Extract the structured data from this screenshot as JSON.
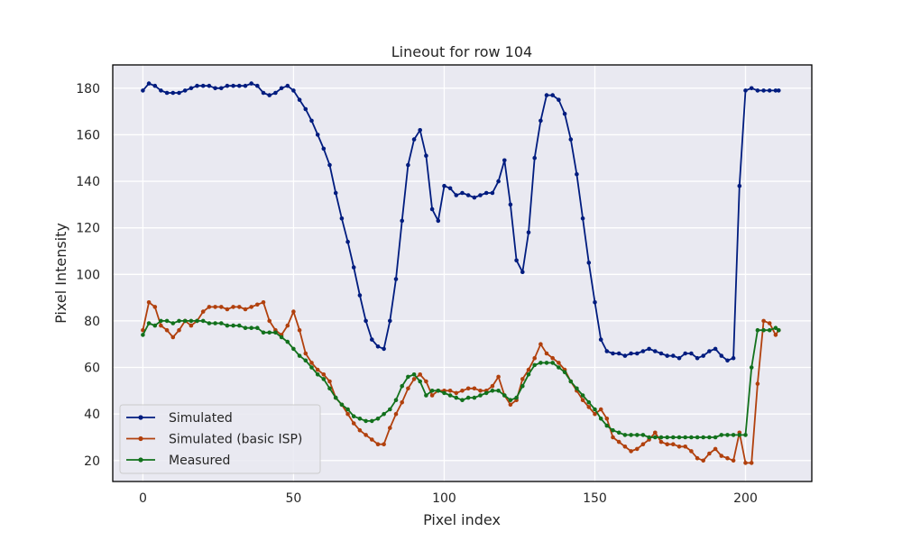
{
  "chart_data": {
    "type": "line",
    "title": "Lineout for row 104",
    "xlabel": "Pixel index",
    "ylabel": "Pixel Intensity",
    "xlim": [
      -10,
      222
    ],
    "ylim": [
      11,
      190
    ],
    "xticks": [
      0,
      50,
      100,
      150,
      200
    ],
    "yticks": [
      20,
      40,
      60,
      80,
      100,
      120,
      140,
      160,
      180
    ],
    "grid": true,
    "legend_position": "lower-left",
    "colors": {
      "background": "#e9e9f1",
      "grid": "#ffffff",
      "frame": "#000000"
    },
    "series": [
      {
        "name": "Simulated",
        "color": "#001c7f",
        "x": [
          0,
          2,
          4,
          6,
          8,
          10,
          12,
          14,
          16,
          18,
          20,
          22,
          24,
          26,
          28,
          30,
          32,
          34,
          36,
          38,
          40,
          42,
          44,
          46,
          48,
          50,
          52,
          54,
          56,
          58,
          60,
          62,
          64,
          66,
          68,
          70,
          72,
          74,
          76,
          78,
          80,
          82,
          84,
          86,
          88,
          90,
          92,
          94,
          96,
          98,
          100,
          102,
          104,
          106,
          108,
          110,
          112,
          114,
          116,
          118,
          120,
          122,
          124,
          126,
          128,
          130,
          132,
          134,
          136,
          138,
          140,
          142,
          144,
          146,
          148,
          150,
          152,
          154,
          156,
          158,
          160,
          162,
          164,
          166,
          168,
          170,
          172,
          174,
          176,
          178,
          180,
          182,
          184,
          186,
          188,
          190,
          192,
          194,
          196,
          198,
          200,
          202,
          204,
          206,
          208,
          210,
          211
        ],
        "y": [
          179,
          182,
          181,
          179,
          178,
          178,
          178,
          179,
          180,
          181,
          181,
          181,
          180,
          180,
          181,
          181,
          181,
          181,
          182,
          181,
          178,
          177,
          178,
          180,
          181,
          179,
          175,
          171,
          166,
          160,
          154,
          147,
          135,
          124,
          114,
          103,
          91,
          80,
          72,
          69,
          68,
          80,
          98,
          123,
          147,
          158,
          162,
          151,
          128,
          123,
          138,
          137,
          134,
          135,
          134,
          133,
          134,
          135,
          135,
          140,
          149,
          130,
          106,
          101,
          118,
          150,
          166,
          177,
          177,
          175,
          169,
          158,
          143,
          124,
          105,
          88,
          72,
          67,
          66,
          66,
          65,
          66,
          66,
          67,
          68,
          67,
          66,
          65,
          65,
          64,
          66,
          66,
          64,
          65,
          67,
          68,
          65,
          63,
          64,
          138,
          179,
          180,
          179,
          179,
          179,
          179,
          179
        ]
      },
      {
        "name": "Simulated (basic ISP)",
        "color": "#b1400d",
        "x": [
          0,
          2,
          4,
          6,
          8,
          10,
          12,
          14,
          16,
          18,
          20,
          22,
          24,
          26,
          28,
          30,
          32,
          34,
          36,
          38,
          40,
          42,
          44,
          46,
          48,
          50,
          52,
          54,
          56,
          58,
          60,
          62,
          64,
          66,
          68,
          70,
          72,
          74,
          76,
          78,
          80,
          82,
          84,
          86,
          88,
          90,
          92,
          94,
          96,
          98,
          100,
          102,
          104,
          106,
          108,
          110,
          112,
          114,
          116,
          118,
          120,
          122,
          124,
          126,
          128,
          130,
          132,
          134,
          136,
          138,
          140,
          142,
          144,
          146,
          148,
          150,
          152,
          154,
          156,
          158,
          160,
          162,
          164,
          166,
          168,
          170,
          172,
          174,
          176,
          178,
          180,
          182,
          184,
          186,
          188,
          190,
          192,
          194,
          196,
          198,
          200,
          202,
          204,
          206,
          208,
          210,
          211
        ],
        "y": [
          76,
          88,
          86,
          78,
          76,
          73,
          76,
          80,
          78,
          80,
          84,
          86,
          86,
          86,
          85,
          86,
          86,
          85,
          86,
          87,
          88,
          80,
          76,
          74,
          78,
          84,
          76,
          66,
          62,
          59,
          57,
          54,
          47,
          44,
          40,
          36,
          33,
          31,
          29,
          27,
          27,
          34,
          40,
          45,
          51,
          55,
          57,
          54,
          48,
          50,
          50,
          50,
          49,
          50,
          51,
          51,
          50,
          50,
          52,
          56,
          48,
          44,
          46,
          55,
          59,
          64,
          70,
          66,
          64,
          62,
          59,
          54,
          50,
          46,
          43,
          40,
          42,
          38,
          30,
          28,
          26,
          24,
          25,
          27,
          29,
          32,
          28,
          27,
          27,
          26,
          26,
          24,
          21,
          20,
          23,
          25,
          22,
          21,
          20,
          32,
          19,
          19,
          53,
          80,
          79,
          74,
          76
        ]
      },
      {
        "name": "Measured",
        "color": "#12711c",
        "x": [
          0,
          2,
          4,
          6,
          8,
          10,
          12,
          14,
          16,
          18,
          20,
          22,
          24,
          26,
          28,
          30,
          32,
          34,
          36,
          38,
          40,
          42,
          44,
          46,
          48,
          50,
          52,
          54,
          56,
          58,
          60,
          62,
          64,
          66,
          68,
          70,
          72,
          74,
          76,
          78,
          80,
          82,
          84,
          86,
          88,
          90,
          92,
          94,
          96,
          98,
          100,
          102,
          104,
          106,
          108,
          110,
          112,
          114,
          116,
          118,
          120,
          122,
          124,
          126,
          128,
          130,
          132,
          134,
          136,
          138,
          140,
          142,
          144,
          146,
          148,
          150,
          152,
          154,
          156,
          158,
          160,
          162,
          164,
          166,
          168,
          170,
          172,
          174,
          176,
          178,
          180,
          182,
          184,
          186,
          188,
          190,
          192,
          194,
          196,
          198,
          200,
          202,
          204,
          206,
          208,
          210,
          211
        ],
        "y": [
          74,
          79,
          78,
          80,
          80,
          79,
          80,
          80,
          80,
          80,
          80,
          79,
          79,
          79,
          78,
          78,
          78,
          77,
          77,
          77,
          75,
          75,
          75,
          73,
          71,
          68,
          65,
          63,
          60,
          57,
          55,
          51,
          47,
          44,
          42,
          39,
          38,
          37,
          37,
          38,
          40,
          42,
          46,
          52,
          56,
          57,
          54,
          48,
          50,
          50,
          49,
          48,
          47,
          46,
          47,
          47,
          48,
          49,
          50,
          50,
          48,
          46,
          47,
          52,
          57,
          61,
          62,
          62,
          62,
          60,
          58,
          54,
          51,
          48,
          45,
          42,
          38,
          35,
          33,
          32,
          31,
          31,
          31,
          31,
          30,
          30,
          30,
          30,
          30,
          30,
          30,
          30,
          30,
          30,
          30,
          30,
          31,
          31,
          31,
          31,
          31,
          60,
          76,
          76,
          76,
          77,
          76
        ]
      }
    ]
  }
}
